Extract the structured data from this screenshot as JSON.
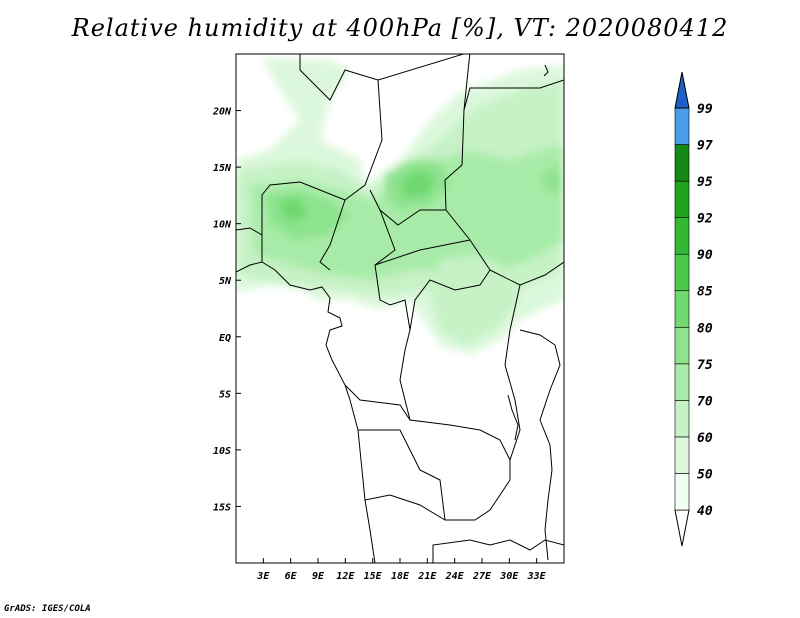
{
  "title": "Relative humidity at 400hPa [%], VT: 2020080412",
  "credit": "GrADS: IGES/COLA",
  "map": {
    "lon_range": [
      0,
      36
    ],
    "lat_range": [
      -20,
      25
    ],
    "lon_ticks": [
      {
        "value": 3,
        "label": "3E"
      },
      {
        "value": 6,
        "label": "6E"
      },
      {
        "value": 9,
        "label": "9E"
      },
      {
        "value": 12,
        "label": "12E"
      },
      {
        "value": 15,
        "label": "15E"
      },
      {
        "value": 18,
        "label": "18E"
      },
      {
        "value": 21,
        "label": "21E"
      },
      {
        "value": 24,
        "label": "24E"
      },
      {
        "value": 27,
        "label": "27E"
      },
      {
        "value": 30,
        "label": "30E"
      },
      {
        "value": 33,
        "label": "33E"
      }
    ],
    "lat_ticks": [
      {
        "value": 20,
        "label": "20N"
      },
      {
        "value": 15,
        "label": "15N"
      },
      {
        "value": 10,
        "label": "10N"
      },
      {
        "value": 5,
        "label": "5N"
      },
      {
        "value": 0,
        "label": "EQ"
      },
      {
        "value": -5,
        "label": "5S"
      },
      {
        "value": -10,
        "label": "10S"
      },
      {
        "value": -15,
        "label": "15S"
      }
    ]
  },
  "colorbar": {
    "levels": [
      {
        "label": "40",
        "color": "#f0fff0"
      },
      {
        "label": "50",
        "color": "#dcf8dc"
      },
      {
        "label": "60",
        "color": "#c6f2c6"
      },
      {
        "label": "70",
        "color": "#a8eba8"
      },
      {
        "label": "75",
        "color": "#8ee38e"
      },
      {
        "label": "80",
        "color": "#6fd86f"
      },
      {
        "label": "85",
        "color": "#4cc94c"
      },
      {
        "label": "90",
        "color": "#32b832"
      },
      {
        "label": "92",
        "color": "#1fa31f"
      },
      {
        "label": "95",
        "color": "#148a14"
      },
      {
        "label": "97",
        "color": "#4a9ee8"
      },
      {
        "label": "99",
        "color": "#2a72d4"
      }
    ],
    "top_color": "#1f5fc8",
    "bottom_color": "#ffffff"
  }
}
